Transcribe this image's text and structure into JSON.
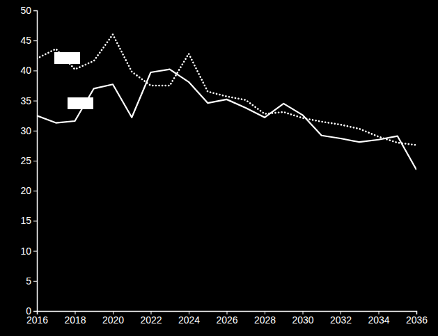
{
  "chart_data": {
    "type": "line",
    "x": [
      2016,
      2017,
      2018,
      2019,
      2020,
      2021,
      2022,
      2023,
      2024,
      2025,
      2026,
      2027,
      2028,
      2029,
      2030,
      2031,
      2032,
      2033,
      2034,
      2035,
      2036
    ],
    "series": [
      {
        "color": "#ffffff",
        "line_style": "solid",
        "values": [
          32.5,
          31.3,
          31.6,
          37.0,
          37.7,
          32.2,
          39.7,
          40.2,
          38.1,
          34.6,
          35.2,
          33.8,
          32.2,
          34.5,
          32.6,
          29.2,
          28.7,
          28.1,
          28.5,
          29.1,
          23.5
        ]
      },
      {
        "color": "#ffffff",
        "line_style": "dotted",
        "values": [
          42.0,
          43.6,
          40.2,
          41.6,
          46.0,
          39.8,
          37.5,
          37.5,
          42.8,
          36.5,
          35.7,
          35.1,
          32.8,
          33.1,
          32.1,
          31.5,
          31.0,
          30.3,
          29.0,
          28.0,
          27.6
        ]
      }
    ],
    "xlim": [
      2016,
      2036
    ],
    "xticks": [
      2016,
      2018,
      2020,
      2022,
      2024,
      2026,
      2028,
      2030,
      2032,
      2034,
      2036
    ],
    "ylim": [
      0,
      50
    ],
    "yticks": [
      0,
      5,
      10,
      15,
      20,
      25,
      30,
      35,
      40,
      45,
      50
    ],
    "grid": false
  }
}
